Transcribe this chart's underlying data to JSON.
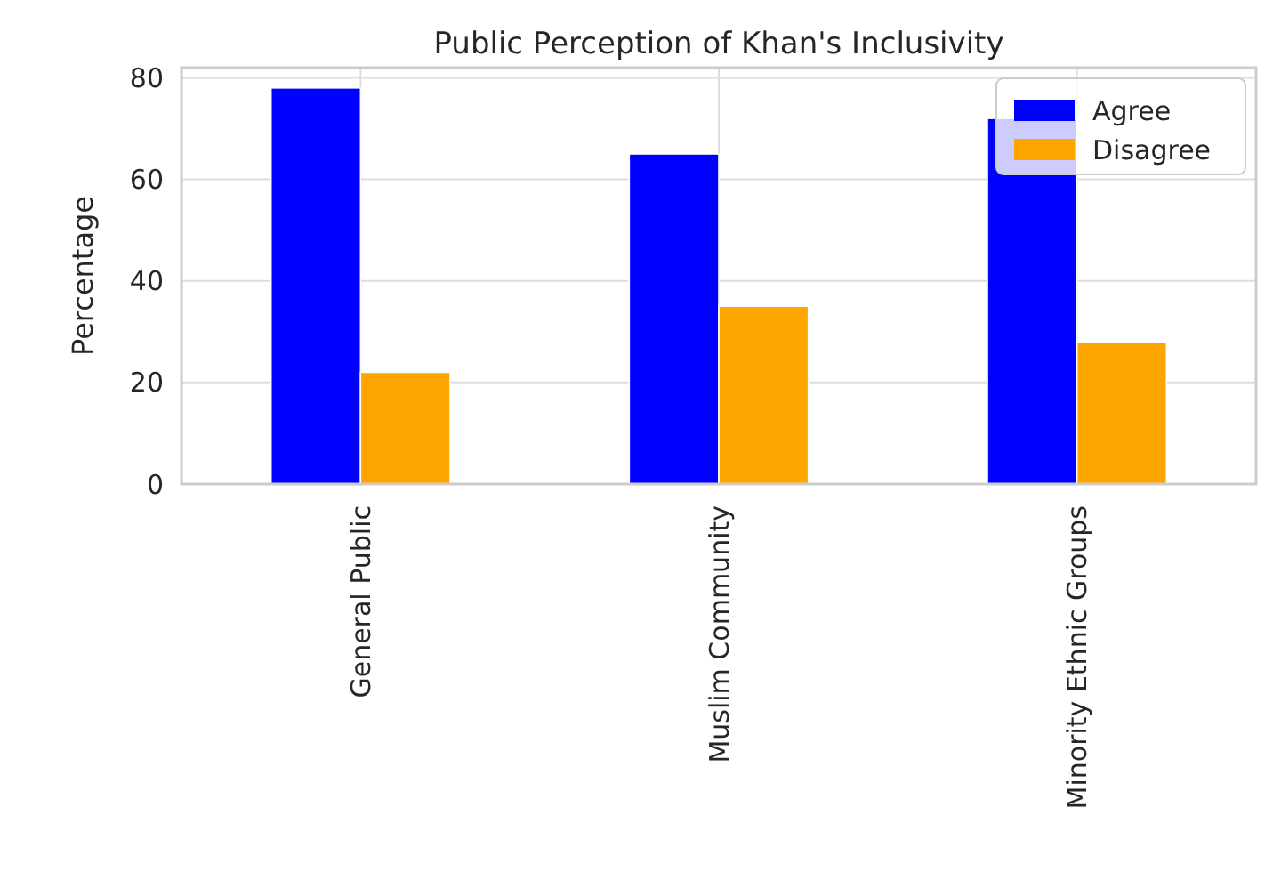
{
  "chart_data": {
    "type": "bar",
    "title": "Public Perception of Khan's Inclusivity",
    "ylabel": "Percentage",
    "categories": [
      "General Public",
      "Muslim Community",
      "Minority Ethnic Groups"
    ],
    "series": [
      {
        "name": "Agree",
        "color": "#0000ff",
        "values": [
          78,
          65,
          72
        ]
      },
      {
        "name": "Disagree",
        "color": "#ffa500",
        "values": [
          22,
          35,
          28
        ]
      }
    ],
    "ylim": [
      0,
      82
    ],
    "yticks": [
      0,
      20,
      40,
      60,
      80
    ],
    "grid": true,
    "legend": "top right"
  }
}
